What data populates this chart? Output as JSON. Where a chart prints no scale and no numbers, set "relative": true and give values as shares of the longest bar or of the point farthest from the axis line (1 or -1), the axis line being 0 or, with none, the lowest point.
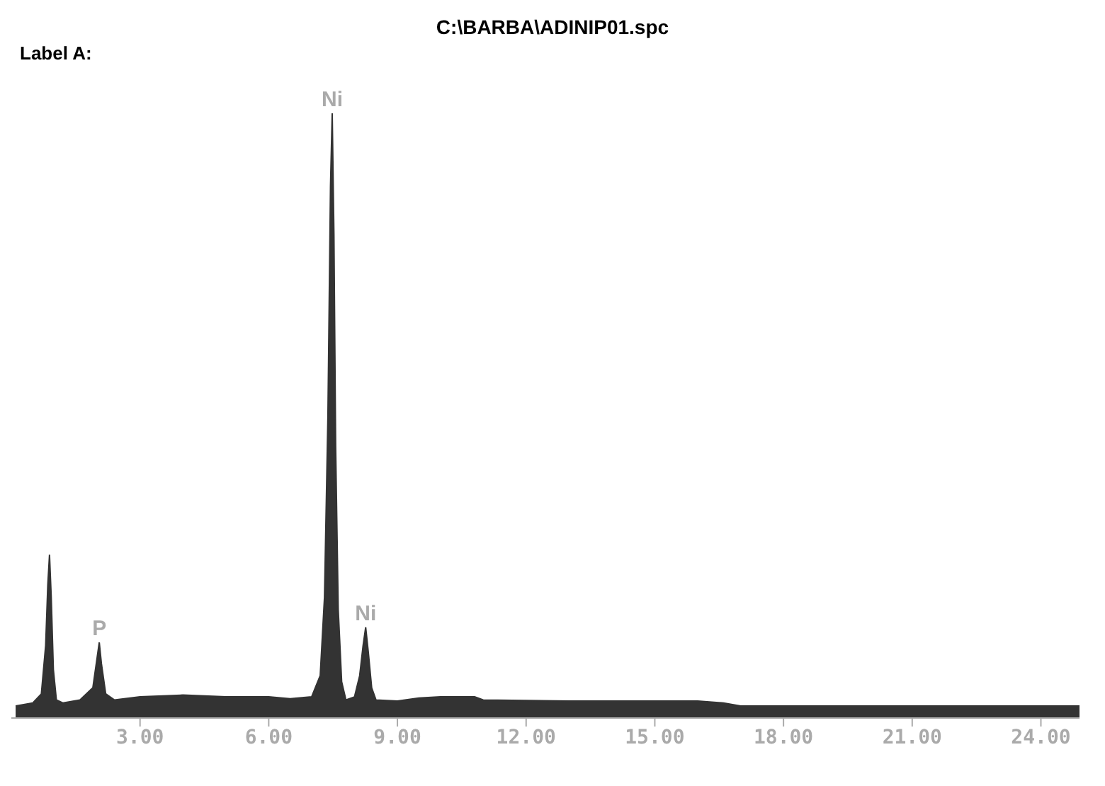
{
  "chart_data": {
    "type": "area",
    "title": "C:\\BARBA\\ADINIP01.spc",
    "subtitle": "Label A:",
    "relative": true,
    "color": "#333333",
    "tick_labels": "x",
    "grid": false,
    "legend": false,
    "annotations": [
      {
        "text": "Ni",
        "x": 7.48,
        "y": 1
      },
      {
        "text": "P",
        "x": 2.05,
        "y": 0.125
      },
      {
        "text": "Ni",
        "x": 8.26,
        "y": 0.15
      }
    ],
    "xlim": [
      0,
      24.9
    ],
    "xticks": [
      {
        "value": 3,
        "label": "3.00"
      },
      {
        "value": 6,
        "label": "6.00"
      },
      {
        "value": 9,
        "label": "9.00"
      },
      {
        "value": 12,
        "label": "12.00"
      },
      {
        "value": 15,
        "label": "15.00"
      },
      {
        "value": 18,
        "label": "18.00"
      },
      {
        "value": 21,
        "label": "21.00"
      },
      {
        "value": 24,
        "label": "24.00"
      }
    ],
    "x": [
      0.1,
      0.5,
      0.7,
      0.8,
      0.85,
      0.89,
      0.93,
      0.98,
      1.05,
      1.2,
      1.6,
      1.9,
      2.0,
      2.05,
      2.1,
      2.2,
      2.4,
      3.0,
      4.0,
      5.0,
      6.0,
      6.5,
      7.0,
      7.2,
      7.3,
      7.38,
      7.44,
      7.48,
      7.52,
      7.56,
      7.62,
      7.7,
      7.8,
      8.0,
      8.12,
      8.2,
      8.26,
      8.32,
      8.4,
      8.5,
      9,
      9.5,
      10,
      10.8,
      11,
      13,
      16,
      16.6,
      17,
      20,
      24,
      24.9
    ],
    "values": [
      0.02,
      0.025,
      0.04,
      0.12,
      0.22,
      0.27,
      0.2,
      0.08,
      0.03,
      0.025,
      0.03,
      0.05,
      0.1,
      0.125,
      0.09,
      0.04,
      0.03,
      0.035,
      0.038,
      0.035,
      0.035,
      0.032,
      0.035,
      0.07,
      0.2,
      0.5,
      0.88,
      1,
      0.8,
      0.45,
      0.18,
      0.06,
      0.03,
      0.035,
      0.07,
      0.12,
      0.15,
      0.11,
      0.05,
      0.03,
      0.028,
      0.033,
      0.035,
      0.035,
      0.03,
      0.028,
      0.028,
      0.025,
      0.02,
      0.02,
      0.02,
      0.02
    ]
  }
}
